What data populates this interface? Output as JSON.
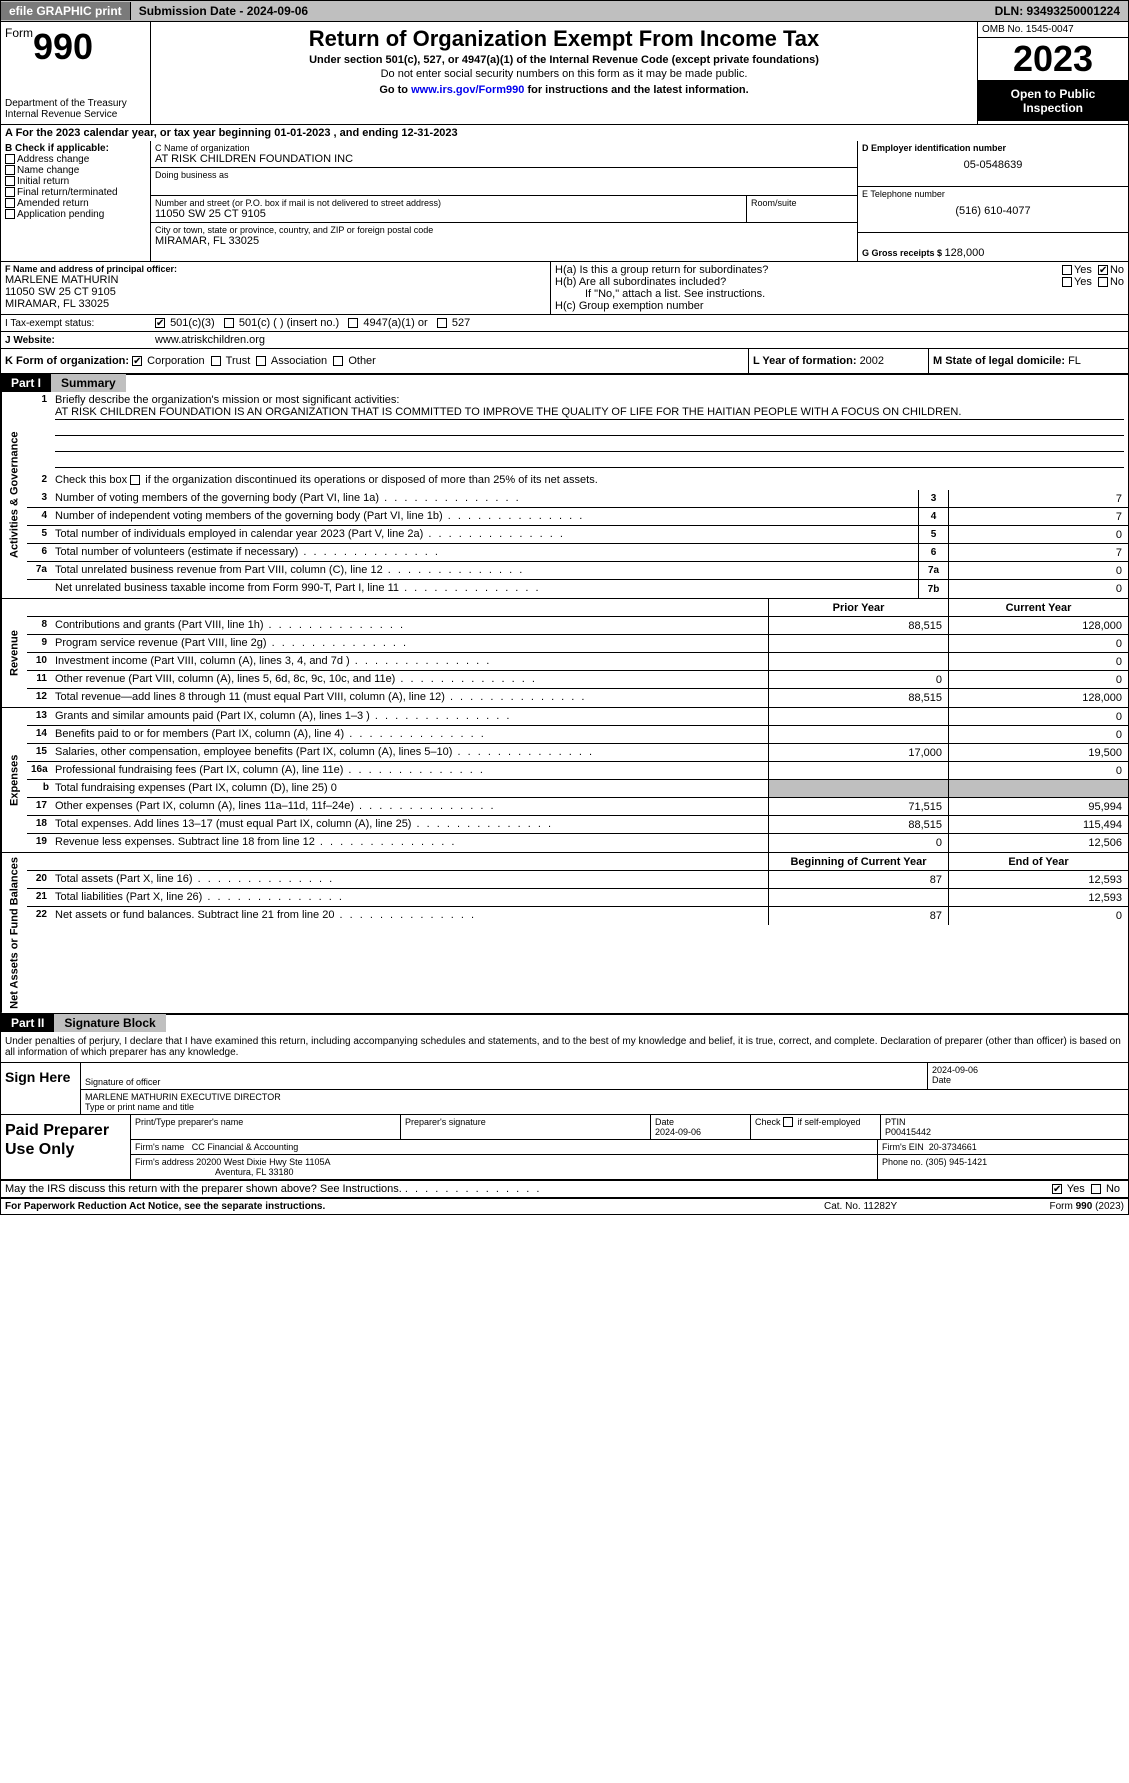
{
  "topbar": {
    "efile": "efile GRAPHIC print",
    "submission": "Submission Date - 2024-09-06",
    "dln": "DLN: 93493250001224"
  },
  "header": {
    "form_prefix": "Form",
    "form_number": "990",
    "dept": "Department of the Treasury Internal Revenue Service",
    "title": "Return of Organization Exempt From Income Tax",
    "sub1": "Under section 501(c), 527, or 4947(a)(1) of the Internal Revenue Code (except private foundations)",
    "sub2": "Do not enter social security numbers on this form as it may be made public.",
    "sub3_pre": "Go to ",
    "sub3_link": "www.irs.gov/Form990",
    "sub3_post": " for instructions and the latest information.",
    "omb": "OMB No. 1545-0047",
    "year": "2023",
    "inspection": "Open to Public Inspection"
  },
  "period": {
    "label_a": "A For the 2023 calendar year, or tax year beginning ",
    "begin": "01-01-2023",
    "mid": " , and ending ",
    "end": "12-31-2023"
  },
  "boxB": {
    "label": "B Check if applicable:",
    "items": [
      "Address change",
      "Name change",
      "Initial return",
      "Final return/terminated",
      "Amended return",
      "Application pending"
    ]
  },
  "boxC": {
    "name_lbl": "C Name of organization",
    "name": "AT RISK CHILDREN FOUNDATION INC",
    "dba_lbl": "Doing business as",
    "dba": "",
    "street_lbl": "Number and street (or P.O. box if mail is not delivered to street address)",
    "room_lbl": "Room/suite",
    "street": "11050 SW 25 CT 9105",
    "city_lbl": "City or town, state or province, country, and ZIP or foreign postal code",
    "city": "MIRAMAR, FL  33025"
  },
  "boxD": {
    "ein_lbl": "D Employer identification number",
    "ein": "05-0548639",
    "phone_lbl": "E Telephone number",
    "phone": "(516) 610-4077",
    "gross_lbl": "G Gross receipts $ ",
    "gross": "128,000"
  },
  "officer": {
    "lbl": "F  Name and address of principal officer:",
    "name": "MARLENE MATHURIN",
    "street": "11050 SW 25 CT 9105",
    "city": "MIRAMAR, FL  33025"
  },
  "hsection": {
    "ha": "H(a)  Is this a group return for subordinates?",
    "ha_yes": "Yes",
    "ha_no": "No",
    "hb": "H(b)  Are all subordinates included?",
    "hb_yes": "Yes",
    "hb_no": "No",
    "hb_note": "If \"No,\" attach a list. See instructions.",
    "hc": "H(c)  Group exemption number"
  },
  "status": {
    "lbl_i": "I    Tax-exempt status:",
    "c3": "501(c)(3)",
    "c_insert": "501(c) (  ) (insert no.)",
    "a1": "4947(a)(1) or",
    "s527": "527",
    "lbl_j": "J    Website:",
    "website": "www.atriskchildren.org"
  },
  "korg": {
    "lbl": "K Form of organization:",
    "corp": "Corporation",
    "trust": "Trust",
    "assoc": "Association",
    "other": "Other",
    "year_lbl": "L Year of formation: ",
    "year": "2002",
    "state_lbl": "M State of legal domicile: ",
    "state": "FL"
  },
  "partI": {
    "tab": "Part I",
    "title": "Summary"
  },
  "side": {
    "gov": "Activities & Governance",
    "rev": "Revenue",
    "exp": "Expenses",
    "net": "Net Assets or Fund Balances"
  },
  "mission": {
    "lbl": "Briefly describe the organization's mission or most significant activities:",
    "text": "AT RISK CHILDREN FOUNDATION IS AN ORGANIZATION THAT IS COMMITTED TO IMPROVE THE QUALITY OF LIFE FOR THE HAITIAN PEOPLE WITH A FOCUS ON CHILDREN."
  },
  "line2": "Check this box      if the organization discontinued its operations or disposed of more than 25% of its net assets.",
  "lines_gov": [
    {
      "n": "3",
      "d": "Number of voting members of the governing body (Part VI, line 1a)",
      "box": "3",
      "v": "7"
    },
    {
      "n": "4",
      "d": "Number of independent voting members of the governing body (Part VI, line 1b)",
      "box": "4",
      "v": "7"
    },
    {
      "n": "5",
      "d": "Total number of individuals employed in calendar year 2023 (Part V, line 2a)",
      "box": "5",
      "v": "0"
    },
    {
      "n": "6",
      "d": "Total number of volunteers (estimate if necessary)",
      "box": "6",
      "v": "7"
    },
    {
      "n": "7a",
      "d": "Total unrelated business revenue from Part VIII, column (C), line 12",
      "box": "7a",
      "v": "0"
    },
    {
      "n": "",
      "d": "Net unrelated business taxable income from Form 990-T, Part I, line 11",
      "box": "7b",
      "v": "0"
    }
  ],
  "col_hdr": {
    "prior": "Prior Year",
    "current": "Current Year",
    "boy": "Beginning of Current Year",
    "eoy": "End of Year"
  },
  "lines_rev": [
    {
      "n": "8",
      "d": "Contributions and grants (Part VIII, line 1h)",
      "p": "88,515",
      "c": "128,000"
    },
    {
      "n": "9",
      "d": "Program service revenue (Part VIII, line 2g)",
      "p": "",
      "c": "0"
    },
    {
      "n": "10",
      "d": "Investment income (Part VIII, column (A), lines 3, 4, and 7d )",
      "p": "",
      "c": "0"
    },
    {
      "n": "11",
      "d": "Other revenue (Part VIII, column (A), lines 5, 6d, 8c, 9c, 10c, and 11e)",
      "p": "0",
      "c": "0"
    },
    {
      "n": "12",
      "d": "Total revenue—add lines 8 through 11 (must equal Part VIII, column (A), line 12)",
      "p": "88,515",
      "c": "128,000"
    }
  ],
  "lines_exp": [
    {
      "n": "13",
      "d": "Grants and similar amounts paid (Part IX, column (A), lines 1–3 )",
      "p": "",
      "c": "0"
    },
    {
      "n": "14",
      "d": "Benefits paid to or for members (Part IX, column (A), line 4)",
      "p": "",
      "c": "0"
    },
    {
      "n": "15",
      "d": "Salaries, other compensation, employee benefits (Part IX, column (A), lines 5–10)",
      "p": "17,000",
      "c": "19,500"
    },
    {
      "n": "16a",
      "d": "Professional fundraising fees (Part IX, column (A), line 11e)",
      "p": "",
      "c": "0"
    },
    {
      "n": "b",
      "d": "Total fundraising expenses (Part IX, column (D), line 25) 0",
      "grey": true
    },
    {
      "n": "17",
      "d": "Other expenses (Part IX, column (A), lines 11a–11d, 11f–24e)",
      "p": "71,515",
      "c": "95,994"
    },
    {
      "n": "18",
      "d": "Total expenses. Add lines 13–17 (must equal Part IX, column (A), line 25)",
      "p": "88,515",
      "c": "115,494"
    },
    {
      "n": "19",
      "d": "Revenue less expenses. Subtract line 18 from line 12",
      "p": "0",
      "c": "12,506"
    }
  ],
  "lines_net": [
    {
      "n": "20",
      "d": "Total assets (Part X, line 16)",
      "p": "87",
      "c": "12,593"
    },
    {
      "n": "21",
      "d": "Total liabilities (Part X, line 26)",
      "p": "",
      "c": "12,593"
    },
    {
      "n": "22",
      "d": "Net assets or fund balances. Subtract line 21 from line 20",
      "p": "87",
      "c": "0"
    }
  ],
  "partII": {
    "tab": "Part II",
    "title": "Signature Block"
  },
  "sig_text": "Under penalties of perjury, I declare that I have examined this return, including accompanying schedules and statements, and to the best of my knowledge and belief, it is true, correct, and complete. Declaration of preparer (other than officer) is based on all information of which preparer has any knowledge.",
  "sign": {
    "label": "Sign Here",
    "sig_lbl": "Signature of officer",
    "date": "2024-09-06",
    "date_lbl": "Date",
    "name": "MARLENE MATHURIN  EXECUTIVE DIRECTOR",
    "name_lbl": "Type or print name and title"
  },
  "paid": {
    "label": "Paid Preparer Use Only",
    "prep_name_lbl": "Print/Type preparer's name",
    "prep_sig_lbl": "Preparer's signature",
    "date_lbl": "Date",
    "date": "2024-09-06",
    "check_lbl": "Check       if self-employed",
    "ptin_lbl": "PTIN",
    "ptin": "P00415442",
    "firm_name_lbl": "Firm's name",
    "firm_name": "CC Financial & Accounting",
    "firm_ein_lbl": "Firm's EIN",
    "firm_ein": "20-3734661",
    "firm_addr_lbl": "Firm's address",
    "firm_addr1": "20200 West Dixie Hwy Ste 1105A",
    "firm_addr2": "Aventura, FL  33180",
    "phone_lbl": "Phone no.",
    "phone": "(305) 945-1421"
  },
  "discuss": {
    "text": "May the IRS discuss this return with the preparer shown above? See Instructions.",
    "yes": "Yes",
    "no": "No"
  },
  "footer": {
    "left": "For Paperwork Reduction Act Notice, see the separate instructions.",
    "mid": "Cat. No. 11282Y",
    "right_pre": "Form ",
    "right_b": "990",
    "right_post": " (2023)"
  },
  "colors": {
    "topbar_bg": "#bfbfbf",
    "btn_bg": "#7a7a7a",
    "black": "#000000",
    "grey": "#bfbfbf",
    "link": "#0000ee"
  }
}
